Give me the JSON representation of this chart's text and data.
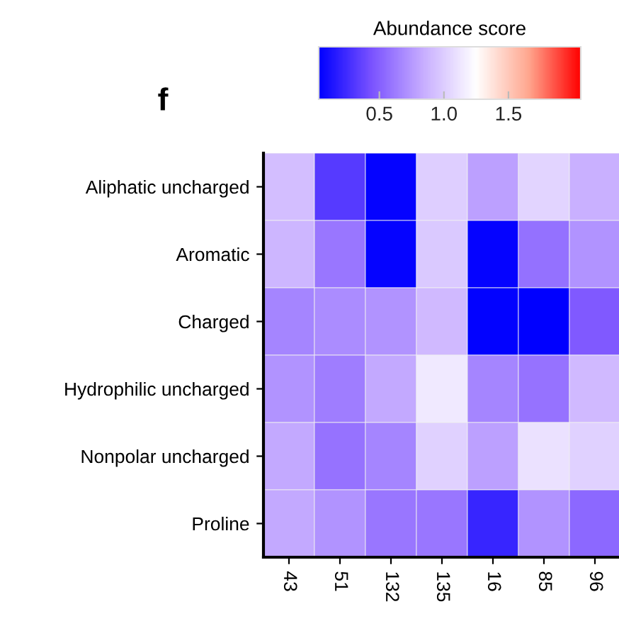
{
  "chart_data": {
    "type": "heatmap",
    "clabel": "Abundance score",
    "annotations": [
      "f"
    ],
    "categories": [
      "43",
      "51",
      "132",
      "135",
      "16",
      "85",
      "96"
    ],
    "y_categories": [
      "Aliphatic uncharged",
      "Aromatic",
      "Charged",
      "Hydrophilic uncharged",
      "Nonpolar uncharged",
      "Proline"
    ],
    "cells": [
      [
        0.92,
        0.32,
        0.05,
        1.0,
        0.78,
        1.03,
        0.85
      ],
      [
        0.88,
        0.6,
        0.05,
        0.98,
        0.05,
        0.57,
        0.72
      ],
      [
        0.66,
        0.69,
        0.72,
        0.9,
        0.04,
        0.03,
        0.47
      ],
      [
        0.72,
        0.63,
        0.82,
        1.14,
        0.66,
        0.58,
        0.9
      ],
      [
        0.82,
        0.58,
        0.66,
        1.02,
        0.78,
        1.1,
        1.02
      ],
      [
        0.82,
        0.72,
        0.6,
        0.6,
        0.22,
        0.72,
        0.53
      ]
    ],
    "clim": [
      0.03,
      2.06
    ],
    "cticks": [
      0.5,
      {
        "value": 1,
        "label": "1.0"
      },
      1.5
    ]
  }
}
